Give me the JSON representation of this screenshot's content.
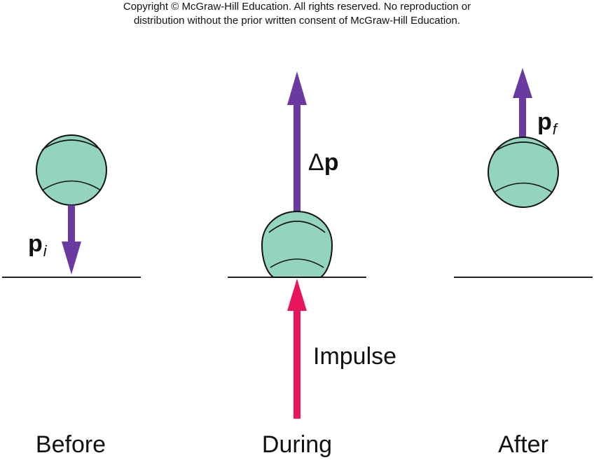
{
  "copyright": {
    "line1": "Copyright © McGraw-Hill Education.  All rights reserved. No reproduction or",
    "line2": "distribution without the prior written consent of McGraw-Hill Education."
  },
  "panels": {
    "before": {
      "caption": "Before",
      "momentum_symbol": "p",
      "momentum_subscript": "i"
    },
    "during": {
      "caption": "During",
      "delta_symbol": "Δ",
      "momentum_symbol": "p",
      "impulse_label": "Impulse"
    },
    "after": {
      "caption": "After",
      "momentum_symbol": "p",
      "momentum_subscript": "f"
    }
  },
  "colors": {
    "ball_fill": "#93d5bc",
    "momentum_arrow": "#6a3aa0",
    "impulse_arrow": "#e8175d",
    "ground": "#222222"
  }
}
